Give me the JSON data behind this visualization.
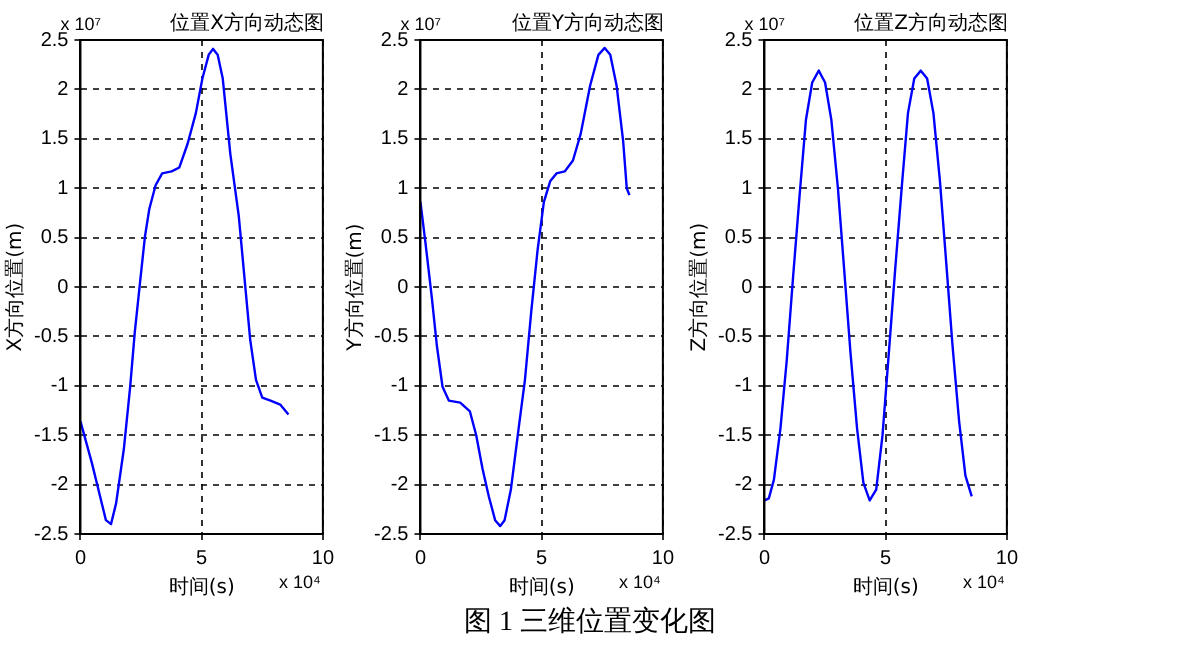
{
  "chart_data": [
    {
      "type": "line",
      "title": "位置X方向动态图",
      "xlabel": "时间(s)",
      "ylabel": "X方向位置(m)",
      "annotations": [
        "x 10⁷",
        "x 10⁴"
      ],
      "xlim": [
        0,
        10
      ],
      "xticks": [
        0,
        5,
        10
      ],
      "ylim": [
        -2.5,
        2.5
      ],
      "yticks": [
        -2.5,
        -2,
        -1.5,
        -1,
        -0.5,
        0,
        0.5,
        1,
        1.5,
        2,
        2.5
      ],
      "grid": true,
      "legend": false,
      "marker": "none",
      "line_style": "solid",
      "series": [
        {
          "color": "#0000ff",
          "x": [
            0,
            0.47,
            0.74,
            1.05,
            1.26,
            1.47,
            1.79,
            2.05,
            2.24,
            2.45,
            2.66,
            2.84,
            3.1,
            3.37,
            3.76,
            4.08,
            4.42,
            4.76,
            5.03,
            5.29,
            5.47,
            5.66,
            5.87,
            6.18,
            6.53,
            6.79,
            7.0,
            7.24,
            7.5,
            7.84,
            8.24,
            8.58
          ],
          "values": [
            -1.36,
            -1.78,
            -2.05,
            -2.36,
            -2.4,
            -2.19,
            -1.64,
            -1.01,
            -0.46,
            0.03,
            0.51,
            0.79,
            1.03,
            1.15,
            1.17,
            1.21,
            1.45,
            1.76,
            2.11,
            2.35,
            2.41,
            2.35,
            2.11,
            1.35,
            0.72,
            0.03,
            -0.53,
            -0.94,
            -1.12,
            -1.15,
            -1.19,
            -1.29
          ]
        }
      ]
    },
    {
      "type": "line",
      "title": "位置Y方向动态图",
      "xlabel": "时间(s)",
      "ylabel": "Y方向位置(m)",
      "annotations": [
        "x 10⁷",
        "x 10⁴",
        "图 1  三维位置变化图"
      ],
      "xlim": [
        0,
        10
      ],
      "xticks": [
        0,
        5,
        10
      ],
      "ylim": [
        -2.5,
        2.5
      ],
      "yticks": [
        -2.5,
        -2,
        -1.5,
        -1,
        -0.5,
        0,
        0.5,
        1,
        1.5,
        2,
        2.5
      ],
      "grid": true,
      "legend": false,
      "marker": "none",
      "line_style": "solid",
      "series": [
        {
          "color": "#0000ff",
          "x": [
            0,
            0.21,
            0.47,
            0.68,
            0.91,
            1.17,
            1.64,
            2.04,
            2.3,
            2.56,
            2.82,
            3.08,
            3.29,
            3.47,
            3.73,
            4.05,
            4.31,
            4.57,
            4.83,
            5.09,
            5.35,
            5.61,
            5.95,
            6.29,
            6.61,
            7.0,
            7.34,
            7.6,
            7.83,
            8.09,
            8.36,
            8.51,
            8.62
          ],
          "values": [
            0.86,
            0.44,
            -0.11,
            -0.6,
            -1.01,
            -1.15,
            -1.17,
            -1.26,
            -1.5,
            -1.84,
            -2.12,
            -2.36,
            -2.42,
            -2.36,
            -2.05,
            -1.43,
            -0.94,
            -0.25,
            0.37,
            0.86,
            1.07,
            1.15,
            1.17,
            1.28,
            1.55,
            2.04,
            2.35,
            2.42,
            2.35,
            2.04,
            1.48,
            1.0,
            0.93
          ]
        }
      ]
    },
    {
      "type": "line",
      "title": "位置Z方向动态图",
      "xlabel": "时间(s)",
      "ylabel": "Z方向位置(m)",
      "annotations": [
        "x 10⁷",
        "x 10⁴"
      ],
      "xlim": [
        0,
        10
      ],
      "xticks": [
        0,
        5,
        10
      ],
      "ylim": [
        -2.5,
        2.5
      ],
      "yticks": [
        -2.5,
        -2,
        -1.5,
        -1,
        -0.5,
        0,
        0.5,
        1,
        1.5,
        2,
        2.5
      ],
      "grid": true,
      "legend": false,
      "marker": "none",
      "line_style": "solid",
      "series": [
        {
          "color": "#0000ff",
          "x": [
            0,
            0.18,
            0.39,
            0.66,
            0.92,
            1.18,
            1.45,
            1.71,
            1.97,
            2.24,
            2.5,
            2.76,
            3.03,
            3.29,
            3.55,
            3.82,
            4.08,
            4.34,
            4.61,
            4.87,
            5.13,
            5.39,
            5.66,
            5.92,
            6.18,
            6.45,
            6.71,
            6.97,
            7.24,
            7.5,
            7.76,
            8.03,
            8.29,
            8.55
          ],
          "values": [
            -2.16,
            -2.14,
            -1.95,
            -1.43,
            -0.74,
            0.1,
            0.93,
            1.69,
            2.07,
            2.19,
            2.07,
            1.69,
            1.0,
            0.17,
            -0.67,
            -1.43,
            -1.98,
            -2.16,
            -2.05,
            -1.5,
            -0.67,
            0.17,
            1.0,
            1.76,
            2.11,
            2.19,
            2.11,
            1.76,
            1.07,
            0.24,
            -0.6,
            -1.36,
            -1.91,
            -2.12
          ]
        }
      ]
    }
  ]
}
